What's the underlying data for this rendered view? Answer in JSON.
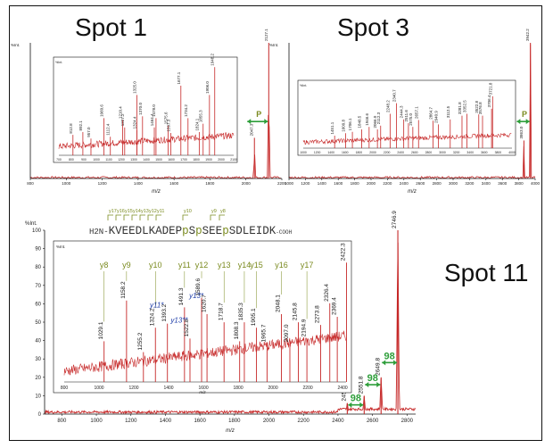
{
  "labels": {
    "spot1": "Spot 1",
    "spot3": "Spot 3",
    "spot11": "Spot 11",
    "intensity_unit": "%Int.",
    "mz_axis": "m/z",
    "phospho_marker": "P",
    "loss_label": "98"
  },
  "sequence": {
    "n_term": "H2N-",
    "tokens": [
      {
        "t": "KVEEDLKADEP",
        "p": false
      },
      {
        "t": "p",
        "p": true
      },
      {
        "t": "S",
        "p": false
      },
      {
        "t": "p",
        "p": true
      },
      {
        "t": "SEE",
        "p": false
      },
      {
        "t": "p",
        "p": true
      },
      {
        "t": "SDLEIDK",
        "p": false
      }
    ],
    "c_term": "-COOH",
    "y_ions": [
      "y17",
      "y16",
      "y15",
      "y14",
      "y13",
      "y12",
      "y11",
      "y10",
      "y9",
      "y8"
    ]
  },
  "colors": {
    "spectrum": "#c62828",
    "annotation": "#7a8a1e",
    "arrow": "#2e9e3a",
    "blue_label": "#1f3ea8"
  },
  "chart_data": [
    {
      "type": "line",
      "title": "Spot 1",
      "xlabel": "m/z",
      "ylabel": "%Int.",
      "xlim": [
        800,
        2200
      ],
      "xticks": [
        800,
        1000,
        1200,
        1400,
        1600,
        1800,
        2000,
        2200
      ],
      "annotations": [
        "2127.1",
        "2047.3",
        "P"
      ],
      "peaks": [
        {
          "x": 2127.1,
          "y": 100,
          "label": "2127.1"
        },
        {
          "x": 2047.3,
          "y": 30,
          "label": "2047.3"
        }
      ],
      "inset": {
        "xlim": [
          700,
          2100
        ],
        "xticks": [
          700,
          800,
          900,
          1000,
          1100,
          1200,
          1300,
          1400,
          1500,
          1600,
          1700,
          1800,
          1900,
          2000,
          2100
        ],
        "peaks": [
          {
            "x": 812.8,
            "y": 22,
            "label": "812.8"
          },
          {
            "x": 892.1,
            "y": 25,
            "label": "892.1"
          },
          {
            "x": 957.0,
            "y": 18,
            "label": "957.0"
          },
          {
            "x": 1060.6,
            "y": 40,
            "label": "1060.6"
          },
          {
            "x": 1112.4,
            "y": 20,
            "label": "1112.4"
          },
          {
            "x": 1210.4,
            "y": 38,
            "label": "1210.4"
          },
          {
            "x": 1227.2,
            "y": 30,
            "label": "1227.2"
          },
          {
            "x": 1324.4,
            "y": 27,
            "label": "1324.4"
          },
          {
            "x": 1325.0,
            "y": 65,
            "label": "1325.0"
          },
          {
            "x": 1370.0,
            "y": 42,
            "label": "1370.0"
          },
          {
            "x": 1464.4,
            "y": 30,
            "label": "1464.4"
          },
          {
            "x": 1478.0,
            "y": 40,
            "label": "1478.0"
          },
          {
            "x": 1575.6,
            "y": 32,
            "label": "1575.6"
          },
          {
            "x": 1597.3,
            "y": 24,
            "label": "1597.3"
          },
          {
            "x": 1677.1,
            "y": 75,
            "label": "1677.1"
          },
          {
            "x": 1734.2,
            "y": 40,
            "label": "1734.2"
          },
          {
            "x": 1824.1,
            "y": 25,
            "label": "1824.1"
          },
          {
            "x": 1855.3,
            "y": 34,
            "label": "1855.3"
          },
          {
            "x": 1906.0,
            "y": 65,
            "label": "1906.0"
          },
          {
            "x": 1948.2,
            "y": 95,
            "label": "1948.2"
          }
        ]
      }
    },
    {
      "type": "line",
      "title": "Spot 3",
      "xlabel": "m/z",
      "ylabel": "%Int.",
      "xlim": [
        1000,
        4000
      ],
      "xticks": [
        1000,
        1200,
        1400,
        1600,
        1800,
        2000,
        2200,
        2400,
        2600,
        2800,
        3000,
        3200,
        3400,
        3600,
        3800,
        4000
      ],
      "annotations": [
        "3942.2",
        "3863.0",
        "P"
      ],
      "peaks": [
        {
          "x": 3942.2,
          "y": 100,
          "label": "3942.2"
        },
        {
          "x": 3863.0,
          "y": 28,
          "label": "3863.0"
        }
      ],
      "inset": {
        "xlim": [
          1000,
          4000
        ],
        "xticks": [
          1000,
          1200,
          1400,
          1600,
          1800,
          2000,
          2200,
          2400,
          2600,
          2800,
          3000,
          3200,
          3400,
          3600,
          3800,
          4000
        ],
        "peaks": [
          {
            "x": 1451.1,
            "y": 20,
            "label": "1451.1"
          },
          {
            "x": 1609.8,
            "y": 24,
            "label": "1609.8"
          },
          {
            "x": 1706.1,
            "y": 26,
            "label": "1706.1"
          },
          {
            "x": 1840.5,
            "y": 30,
            "label": "1840.5"
          },
          {
            "x": 1946.6,
            "y": 34,
            "label": "1946.6"
          },
          {
            "x": 2066.0,
            "y": 30,
            "label": "2066.0"
          },
          {
            "x": 2112.3,
            "y": 36,
            "label": "2112.3"
          },
          {
            "x": 2248.2,
            "y": 55,
            "label": "2248.2"
          },
          {
            "x": 2340.7,
            "y": 72,
            "label": "2340.7"
          },
          {
            "x": 2444.3,
            "y": 46,
            "label": "2444.3"
          },
          {
            "x": 2511.6,
            "y": 40,
            "label": "2511.6"
          },
          {
            "x": 2575.0,
            "y": 34,
            "label": "2575.0"
          },
          {
            "x": 2657.1,
            "y": 45,
            "label": "2657.1"
          },
          {
            "x": 2864.7,
            "y": 44,
            "label": "2864.7"
          },
          {
            "x": 2940.9,
            "y": 38,
            "label": "2940.9"
          },
          {
            "x": 3112.5,
            "y": 46,
            "label": "3112.5"
          },
          {
            "x": 3281.8,
            "y": 52,
            "label": "3281.8"
          },
          {
            "x": 3352.5,
            "y": 55,
            "label": "3352.5"
          },
          {
            "x": 3522.8,
            "y": 54,
            "label": "3522.8"
          },
          {
            "x": 3576.8,
            "y": 52,
            "label": "3576.8"
          },
          {
            "x": 3706.4,
            "y": 63,
            "label": "3706.4"
          },
          {
            "x": 3721.8,
            "y": 83,
            "label": "3721.8"
          }
        ]
      }
    },
    {
      "type": "line",
      "title": "Spot 11",
      "xlabel": "m/z",
      "ylabel": "%Int.",
      "ylim": [
        0,
        100
      ],
      "yticks": [
        0,
        10,
        20,
        30,
        40,
        50,
        60,
        70,
        80,
        90,
        100
      ],
      "xlim": [
        700,
        2850
      ],
      "xticks": [
        800,
        1000,
        1200,
        1400,
        1600,
        1800,
        2000,
        2200,
        2400,
        2600,
        2800
      ],
      "peaks": [
        {
          "x": 2746.9,
          "y": 100,
          "label": "2746.9"
        },
        {
          "x": 2649.8,
          "y": 20,
          "label": "2649.8"
        },
        {
          "x": 2551.8,
          "y": 10,
          "label": "2551.8"
        },
        {
          "x": 2453.9,
          "y": 6,
          "label": "2453.9"
        }
      ],
      "neutral_losses": [
        {
          "from": 2453.9,
          "to": 2551.8,
          "label": "98"
        },
        {
          "from": 2551.8,
          "to": 2649.8,
          "label": "98"
        },
        {
          "from": 2649.8,
          "to": 2746.9,
          "label": "98"
        }
      ],
      "inset": {
        "xlim": [
          800,
          2420
        ],
        "xticks": [
          800,
          1000,
          1200,
          1400,
          1600,
          1800,
          2000,
          2200,
          2400
        ],
        "peaks": [
          {
            "x": 1029.1,
            "y": 30,
            "label": "1029.1",
            "ion": "y8"
          },
          {
            "x": 1158.2,
            "y": 60,
            "label": "1158.2",
            "ion": "y9"
          },
          {
            "x": 1255.2,
            "y": 22,
            "label": "1255.2"
          },
          {
            "x": 1324.2,
            "y": 40,
            "label": "1324.2",
            "ion": "y10"
          },
          {
            "x": 1393.2,
            "y": 43,
            "label": "1393.2",
            "ion_alt": "y11*"
          },
          {
            "x": 1491.3,
            "y": 55,
            "label": "1491.3",
            "ion": "y11"
          },
          {
            "x": 1522.8,
            "y": 32,
            "label": "1522.8",
            "ion_alt": "y13**"
          },
          {
            "x": 1589.6,
            "y": 62,
            "label": "1589.6",
            "ion": "y12"
          },
          {
            "x": 1620.7,
            "y": 50,
            "label": "1620.7",
            "ion_alt": "y13*"
          },
          {
            "x": 1718.7,
            "y": 44,
            "label": "1718.7",
            "ion": "y13"
          },
          {
            "x": 1808.3,
            "y": 30,
            "label": "1808.3"
          },
          {
            "x": 1835.3,
            "y": 44,
            "label": "1835.3",
            "ion": "y14"
          },
          {
            "x": 1905.1,
            "y": 40,
            "label": "1905.1",
            "ion": "y15"
          },
          {
            "x": 1965.7,
            "y": 28,
            "label": "1965.7"
          },
          {
            "x": 2048.1,
            "y": 50,
            "label": "2048.1",
            "ion": "y16"
          },
          {
            "x": 2097.0,
            "y": 28,
            "label": "2097.0"
          },
          {
            "x": 2145.8,
            "y": 44,
            "label": "2145.8"
          },
          {
            "x": 2194.9,
            "y": 32,
            "label": "2194.9",
            "ion": "y17"
          },
          {
            "x": 2273.8,
            "y": 42,
            "label": "2273.8"
          },
          {
            "x": 2326.4,
            "y": 58,
            "label": "2326.4"
          },
          {
            "x": 2369.4,
            "y": 48,
            "label": "2369.4"
          },
          {
            "x": 2422.3,
            "y": 88,
            "label": "2422.3"
          }
        ]
      }
    }
  ]
}
